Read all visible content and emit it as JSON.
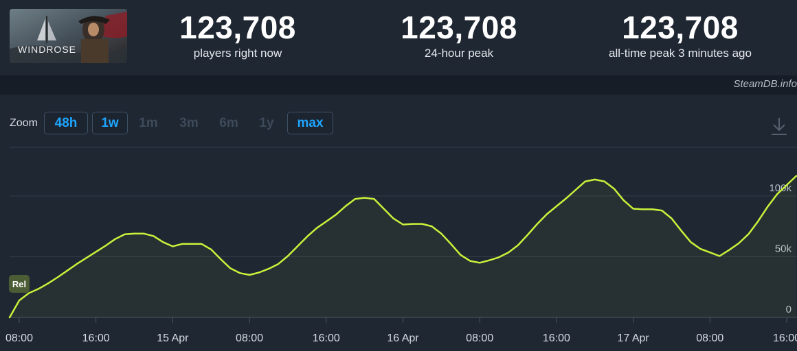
{
  "game": {
    "logo_text": "WINDROSE"
  },
  "stats": [
    {
      "value": "123,708",
      "label": "players right now"
    },
    {
      "value": "123,708",
      "label": "24-hour peak"
    },
    {
      "value": "123,708",
      "label": "all-time peak 3 minutes ago"
    }
  ],
  "credit": "SteamDB.info",
  "zoom": {
    "label": "Zoom",
    "buttons": [
      {
        "label": "48h",
        "state": "active"
      },
      {
        "label": "1w",
        "state": "active"
      },
      {
        "label": "1m",
        "state": "disabled"
      },
      {
        "label": "3m",
        "state": "disabled"
      },
      {
        "label": "6m",
        "state": "disabled"
      },
      {
        "label": "1y",
        "state": "disabled"
      },
      {
        "label": "max",
        "state": "active"
      }
    ]
  },
  "download_icon": "download-icon",
  "colors": {
    "line": "#c8f23a",
    "accent": "#1ea5ff",
    "background": "#1f2733"
  },
  "chart_data": {
    "type": "line",
    "x_unit": "hours since 14 Apr 07:00",
    "y_ticks": [
      0,
      50000,
      100000
    ],
    "y_tick_labels": [
      "0",
      "50k",
      "100k"
    ],
    "ylim": [
      0,
      140000
    ],
    "xlim": [
      0,
      81.5
    ],
    "x_ticks": [
      {
        "x": 1,
        "label": "08:00"
      },
      {
        "x": 9,
        "label": "16:00"
      },
      {
        "x": 17,
        "label": "15 Apr"
      },
      {
        "x": 25,
        "label": "08:00"
      },
      {
        "x": 33,
        "label": "16:00"
      },
      {
        "x": 41,
        "label": "16 Apr"
      },
      {
        "x": 49,
        "label": "08:00"
      },
      {
        "x": 57,
        "label": "16:00"
      },
      {
        "x": 65,
        "label": "17 Apr"
      },
      {
        "x": 73,
        "label": "08:00"
      },
      {
        "x": 81,
        "label": "16:00"
      }
    ],
    "series": [
      {
        "x": [
          0,
          1,
          2,
          3,
          4,
          5,
          6,
          7,
          8,
          9,
          10,
          11,
          12,
          13,
          14,
          15,
          16,
          17,
          18,
          19,
          20,
          21,
          22,
          23,
          24,
          25,
          26,
          27,
          28,
          29,
          30,
          31,
          32,
          33,
          34,
          35,
          36,
          37,
          38,
          39,
          40,
          41,
          42,
          43,
          44,
          45,
          46,
          47,
          48,
          49,
          50,
          51,
          52,
          53,
          54,
          55,
          56,
          57,
          58,
          59,
          60,
          61,
          62,
          63,
          64,
          65,
          66,
          67,
          68,
          69,
          70,
          71,
          72,
          73,
          74,
          75,
          76,
          77,
          78,
          79,
          80,
          81,
          82
        ],
        "values": [
          0,
          14000,
          20000,
          23500,
          28000,
          33000,
          38500,
          44000,
          49000,
          54000,
          59000,
          64500,
          68500,
          69000,
          69000,
          67000,
          62000,
          58500,
          60500,
          60500,
          60500,
          56000,
          48000,
          40500,
          36500,
          35000,
          37000,
          40000,
          44000,
          50500,
          58500,
          66500,
          73500,
          79000,
          84500,
          91500,
          97500,
          98500,
          97500,
          89500,
          81500,
          76500,
          77000,
          77000,
          75000,
          69000,
          60500,
          51500,
          46500,
          45000,
          47000,
          49500,
          53500,
          59500,
          68000,
          77000,
          85000,
          91500,
          98000,
          105000,
          112000,
          113500,
          112000,
          106000,
          96500,
          89500,
          89000,
          89000,
          88000,
          81500,
          71500,
          62000,
          56500,
          53500,
          50500,
          55500,
          61000,
          68500,
          79000,
          91000,
          101500,
          109000,
          116500
        ]
      }
    ],
    "annotation": {
      "label": "Rel",
      "x": 1
    },
    "grid": true
  }
}
